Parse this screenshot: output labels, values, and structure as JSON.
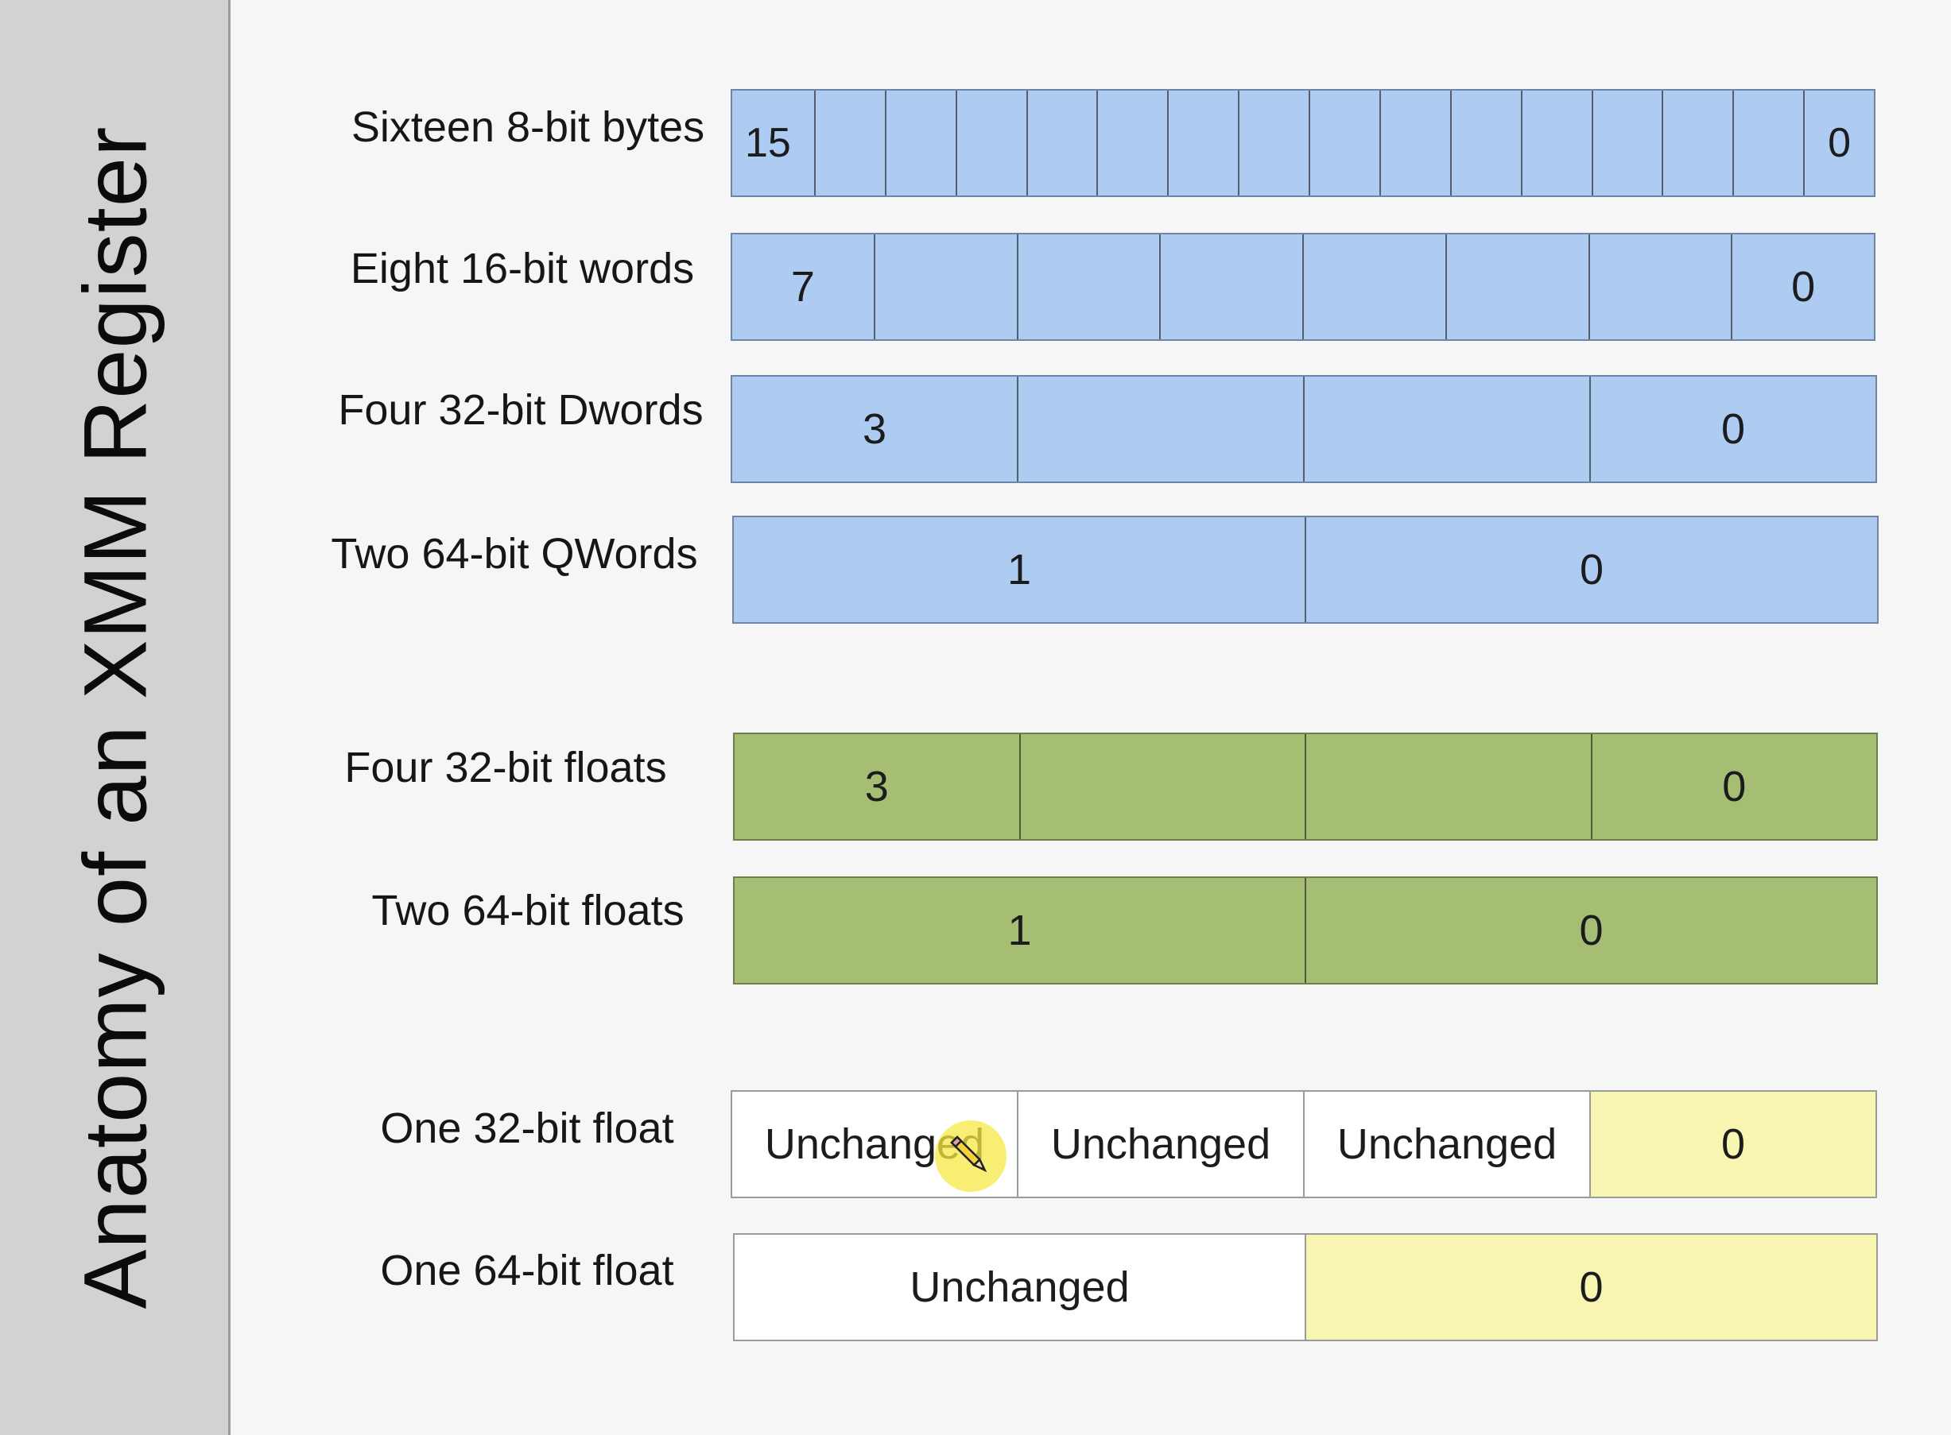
{
  "title": "Anatomy of an XMM Register",
  "rows": [
    {
      "label": "Sixteen 8-bit bytes",
      "cells": [
        "15",
        "",
        "",
        "",
        "",
        "",
        "",
        "",
        "",
        "",
        "",
        "",
        "",
        "",
        "",
        "0"
      ]
    },
    {
      "label": "Eight 16-bit words",
      "cells": [
        "7",
        "",
        "",
        "",
        "",
        "",
        "",
        "0"
      ]
    },
    {
      "label": "Four 32-bit Dwords",
      "cells": [
        "3",
        "",
        "",
        "0"
      ]
    },
    {
      "label": "Two 64-bit QWords",
      "cells": [
        "1",
        "0"
      ]
    },
    {
      "label": "Four 32-bit floats",
      "cells": [
        "3",
        "",
        "",
        "0"
      ]
    },
    {
      "label": "Two 64-bit floats",
      "cells": [
        "1",
        "0"
      ]
    },
    {
      "label": "One 32-bit float",
      "cells": [
        "Unchanged",
        "Unchanged",
        "Unchanged",
        "0"
      ]
    },
    {
      "label": "One 64-bit float",
      "cells": [
        "Unchanged",
        "0"
      ]
    }
  ],
  "colors": {
    "integer": "#aecbf2",
    "float": "#a5be73",
    "unchanged": "#ffffff",
    "scalar": "#f8f5b3"
  },
  "cursor_icon": "pencil-icon"
}
